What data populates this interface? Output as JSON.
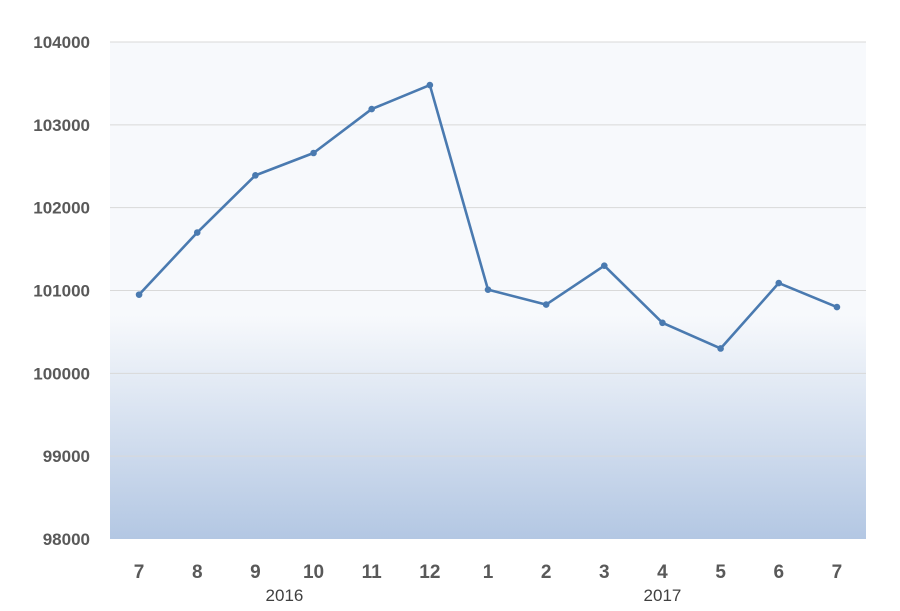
{
  "colors": {
    "line": "#4a7ab0",
    "grid": "#d9d9d9",
    "bg_top": "#f7f9fc",
    "bg_bottom": "#b3c7e3",
    "tick_text": "#595959"
  },
  "chart_data": {
    "type": "line",
    "title": "",
    "xlabel": "",
    "ylabel": "",
    "categories": [
      "7",
      "8",
      "9",
      "10",
      "11",
      "12",
      "1",
      "2",
      "3",
      "4",
      "5",
      "6",
      "7"
    ],
    "groups": [
      {
        "label": "2016",
        "categories_range": [
          0,
          5
        ]
      },
      {
        "label": "2017",
        "categories_range": [
          6,
          12
        ]
      }
    ],
    "series": [
      {
        "values": [
          100950,
          101700,
          102390,
          102660,
          103190,
          103480,
          101010,
          100830,
          101300,
          100610,
          100300,
          101090,
          100800
        ]
      }
    ],
    "ylim": [
      98000,
      104000
    ],
    "yticks": [
      98000,
      99000,
      100000,
      101000,
      102000,
      103000,
      104000
    ],
    "grid": true,
    "legend": "none",
    "markers": true
  }
}
